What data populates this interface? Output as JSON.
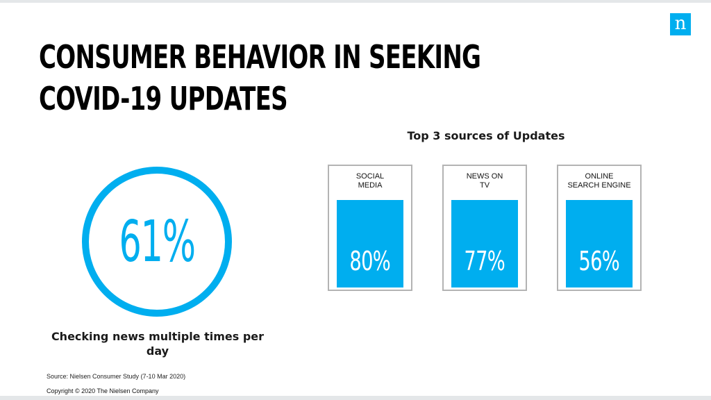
{
  "logo": {
    "letter": "n",
    "color": "#00aeef"
  },
  "title": {
    "line1": "CONSUMER BEHAVIOR IN SEEKING",
    "line2": "COVID-19 UPDATES"
  },
  "headline_stat": {
    "value": "61%",
    "caption": "Checking news multiple times per day",
    "color": "#00aeef"
  },
  "chart_data": {
    "type": "bar",
    "title": "Top 3 sources of Updates",
    "categories": [
      "SOCIAL\nMEDIA",
      "NEWS ON\nTV",
      "ONLINE\nSEARCH ENGINE"
    ],
    "values": [
      80,
      77,
      56
    ],
    "value_labels": [
      "80%",
      "77%",
      "56%"
    ],
    "ylim": [
      0,
      100
    ],
    "bar_color": "#00aeef"
  },
  "footer": {
    "source": "Source: Nielsen Consumer Study (7-10 Mar 2020)",
    "copyright": "Copyright © 2020 The Nielsen Company"
  }
}
